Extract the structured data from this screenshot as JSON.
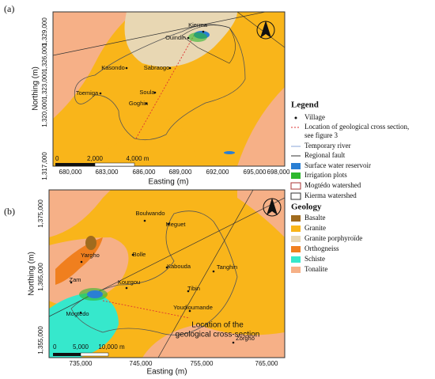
{
  "panels": [
    {
      "label": "(a)",
      "x_axis_label": "Easting (m)",
      "y_axis_label": "Northing (m)",
      "x_ticks": [
        "680,000",
        "683,000",
        "686,000",
        "689,000",
        "692,000",
        "695,000",
        "698,000"
      ],
      "y_ticks": [
        "1,329,000",
        "1,326,000",
        "1,323,000",
        "1,320,000",
        "1,317,000"
      ],
      "villages": [
        "Kierma",
        "Ouindin",
        "Kasondo",
        "Sabraogo",
        "Soula",
        "Toemiga",
        "Goghin"
      ],
      "scale_bar": [
        "0",
        "2,000",
        "4,000 m"
      ]
    },
    {
      "label": "(b)",
      "x_axis_label": "Easting (m)",
      "y_axis_label": "Northing (m)",
      "x_ticks": [
        "735,000",
        "745,000",
        "755,000",
        "765,000"
      ],
      "y_ticks": [
        "1,375,000",
        "1,365,000",
        "1,355,000"
      ],
      "villages": [
        "Boulwando",
        "Meguet",
        "Yargho",
        "Bolle",
        "Kabouda",
        "Tanghin",
        "Tibin",
        "Zam",
        "Kourgou",
        "Youdioumande",
        "Mogtedo",
        "Zorgho"
      ],
      "scale_bar": [
        "0",
        "5,000",
        "10,000 m"
      ],
      "annotation": [
        "Location of the",
        "geological  cross-section"
      ]
    }
  ],
  "legend": {
    "title": "Legend",
    "items": [
      [
        "Village"
      ],
      [
        "Location of geological cross section,",
        "see figure 3"
      ],
      [
        "Temporary river"
      ],
      [
        "Regional fault"
      ],
      [
        "Surface water reservoir"
      ],
      [
        "Irrigation plots"
      ],
      [
        "Mogtédo watershed"
      ],
      [
        "Kierma watershed"
      ]
    ],
    "geology_title": "Geology",
    "geology_items": [
      "Basalte",
      "Granite",
      "Granite porphyroïde",
      "Orthogneiss",
      "Schiste",
      "Tonalite"
    ]
  }
}
